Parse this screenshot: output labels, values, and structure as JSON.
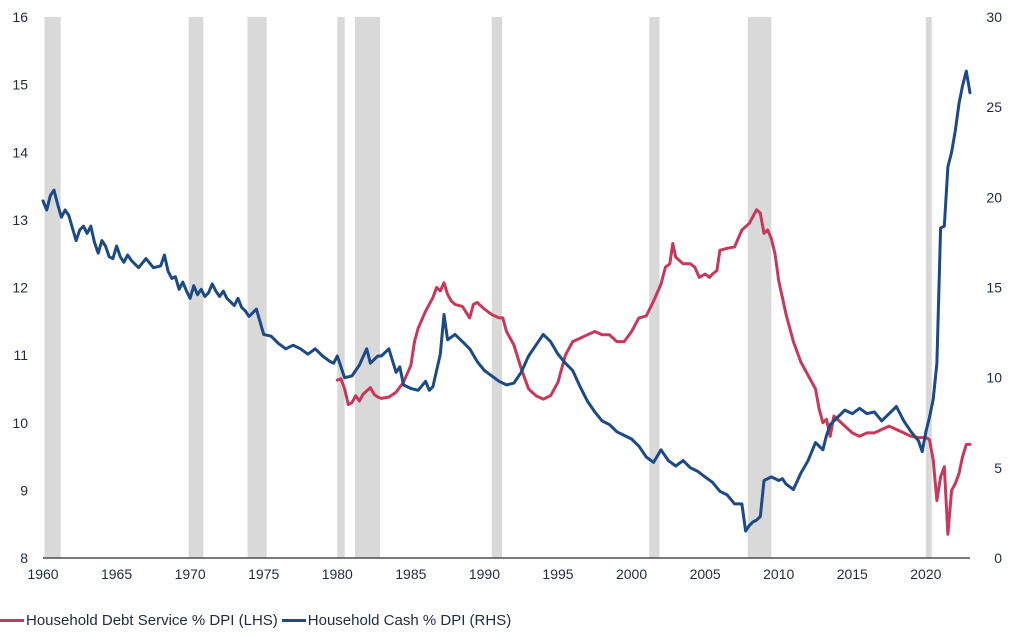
{
  "chart_data": {
    "type": "line",
    "title": "",
    "x_axis": {
      "range": [
        1960,
        2023
      ],
      "ticks": [
        1960,
        1965,
        1970,
        1975,
        1980,
        1985,
        1990,
        1995,
        2000,
        2005,
        2010,
        2015,
        2020
      ]
    },
    "y_left": {
      "range": [
        8,
        16
      ],
      "ticks": [
        8,
        9,
        10,
        11,
        12,
        13,
        14,
        15,
        16
      ]
    },
    "y_right": {
      "range": [
        0,
        30
      ],
      "ticks": [
        0,
        5,
        10,
        15,
        20,
        25,
        30
      ]
    },
    "grid": false,
    "legend_position": "bottom-left",
    "recessions": [
      [
        1960.1,
        1961.2
      ],
      [
        1969.9,
        1970.9
      ],
      [
        1973.9,
        1975.2
      ],
      [
        1980.0,
        1980.5
      ],
      [
        1981.2,
        1982.9
      ],
      [
        1990.5,
        1991.2
      ],
      [
        2001.2,
        2001.9
      ],
      [
        2007.9,
        2009.5
      ],
      [
        2020.0,
        2020.4
      ]
    ],
    "series": [
      {
        "name": "Household Debt Service % DPI (LHS)",
        "axis": "left",
        "color": "#c8385a",
        "points": [
          [
            1980.0,
            10.63
          ],
          [
            1980.25,
            10.65
          ],
          [
            1980.5,
            10.5
          ],
          [
            1980.75,
            10.27
          ],
          [
            1981.0,
            10.3
          ],
          [
            1981.25,
            10.4
          ],
          [
            1981.5,
            10.32
          ],
          [
            1981.75,
            10.42
          ],
          [
            1982.0,
            10.47
          ],
          [
            1982.25,
            10.52
          ],
          [
            1982.5,
            10.42
          ],
          [
            1982.75,
            10.38
          ],
          [
            1983.0,
            10.36
          ],
          [
            1983.5,
            10.38
          ],
          [
            1984.0,
            10.45
          ],
          [
            1984.5,
            10.6
          ],
          [
            1985.0,
            10.85
          ],
          [
            1985.25,
            11.2
          ],
          [
            1985.5,
            11.4
          ],
          [
            1986.0,
            11.65
          ],
          [
            1986.5,
            11.85
          ],
          [
            1986.75,
            12.0
          ],
          [
            1987.0,
            11.95
          ],
          [
            1987.25,
            12.07
          ],
          [
            1987.5,
            11.9
          ],
          [
            1987.75,
            11.8
          ],
          [
            1988.0,
            11.75
          ],
          [
            1988.5,
            11.72
          ],
          [
            1989.0,
            11.55
          ],
          [
            1989.25,
            11.75
          ],
          [
            1989.5,
            11.78
          ],
          [
            1990.0,
            11.68
          ],
          [
            1990.5,
            11.6
          ],
          [
            1991.0,
            11.55
          ],
          [
            1991.25,
            11.55
          ],
          [
            1991.5,
            11.35
          ],
          [
            1992.0,
            11.15
          ],
          [
            1992.5,
            10.8
          ],
          [
            1993.0,
            10.5
          ],
          [
            1993.5,
            10.4
          ],
          [
            1994.0,
            10.35
          ],
          [
            1994.5,
            10.4
          ],
          [
            1995.0,
            10.6
          ],
          [
            1995.5,
            11.0
          ],
          [
            1996.0,
            11.2
          ],
          [
            1996.5,
            11.25
          ],
          [
            1997.0,
            11.3
          ],
          [
            1997.5,
            11.35
          ],
          [
            1998.0,
            11.3
          ],
          [
            1998.5,
            11.3
          ],
          [
            1999.0,
            11.2
          ],
          [
            1999.5,
            11.2
          ],
          [
            2000.0,
            11.35
          ],
          [
            2000.5,
            11.55
          ],
          [
            2001.0,
            11.58
          ],
          [
            2001.5,
            11.8
          ],
          [
            2002.0,
            12.05
          ],
          [
            2002.3,
            12.3
          ],
          [
            2002.6,
            12.35
          ],
          [
            2002.8,
            12.65
          ],
          [
            2003.0,
            12.45
          ],
          [
            2003.5,
            12.35
          ],
          [
            2004.0,
            12.35
          ],
          [
            2004.3,
            12.3
          ],
          [
            2004.6,
            12.15
          ],
          [
            2005.0,
            12.2
          ],
          [
            2005.3,
            12.15
          ],
          [
            2005.5,
            12.2
          ],
          [
            2005.8,
            12.25
          ],
          [
            2006.0,
            12.55
          ],
          [
            2006.5,
            12.58
          ],
          [
            2007.0,
            12.6
          ],
          [
            2007.5,
            12.85
          ],
          [
            2008.0,
            12.95
          ],
          [
            2008.25,
            13.05
          ],
          [
            2008.5,
            13.15
          ],
          [
            2008.75,
            13.1
          ],
          [
            2009.0,
            12.8
          ],
          [
            2009.25,
            12.85
          ],
          [
            2009.5,
            12.72
          ],
          [
            2009.75,
            12.5
          ],
          [
            2010.0,
            12.1
          ],
          [
            2010.5,
            11.6
          ],
          [
            2011.0,
            11.2
          ],
          [
            2011.5,
            10.9
          ],
          [
            2012.0,
            10.7
          ],
          [
            2012.5,
            10.5
          ],
          [
            2012.75,
            10.2
          ],
          [
            2013.0,
            10.0
          ],
          [
            2013.25,
            10.05
          ],
          [
            2013.5,
            9.8
          ],
          [
            2013.75,
            10.1
          ],
          [
            2014.0,
            10.05
          ],
          [
            2014.5,
            9.95
          ],
          [
            2015.0,
            9.85
          ],
          [
            2015.5,
            9.8
          ],
          [
            2016.0,
            9.85
          ],
          [
            2016.5,
            9.85
          ],
          [
            2017.0,
            9.9
          ],
          [
            2017.5,
            9.95
          ],
          [
            2018.0,
            9.9
          ],
          [
            2018.5,
            9.85
          ],
          [
            2019.0,
            9.8
          ],
          [
            2019.5,
            9.78
          ],
          [
            2020.0,
            9.78
          ],
          [
            2020.25,
            9.75
          ],
          [
            2020.5,
            9.45
          ],
          [
            2020.75,
            8.85
          ],
          [
            2021.0,
            9.2
          ],
          [
            2021.25,
            9.35
          ],
          [
            2021.5,
            8.35
          ],
          [
            2021.75,
            9.0
          ],
          [
            2022.0,
            9.1
          ],
          [
            2022.25,
            9.25
          ],
          [
            2022.5,
            9.5
          ],
          [
            2022.75,
            9.68
          ],
          [
            2023.0,
            9.68
          ]
        ]
      },
      {
        "name": "Household Cash % DPI (RHS)",
        "axis": "right",
        "color": "#1c4a86",
        "points": [
          [
            1960.0,
            19.8
          ],
          [
            1960.25,
            19.3
          ],
          [
            1960.5,
            20.1
          ],
          [
            1960.75,
            20.4
          ],
          [
            1961.0,
            19.6
          ],
          [
            1961.25,
            18.9
          ],
          [
            1961.5,
            19.3
          ],
          [
            1961.75,
            19.0
          ],
          [
            1962.0,
            18.3
          ],
          [
            1962.25,
            17.6
          ],
          [
            1962.5,
            18.2
          ],
          [
            1962.75,
            18.4
          ],
          [
            1963.0,
            18.0
          ],
          [
            1963.25,
            18.4
          ],
          [
            1963.5,
            17.5
          ],
          [
            1963.75,
            16.9
          ],
          [
            1964.0,
            17.6
          ],
          [
            1964.25,
            17.3
          ],
          [
            1964.5,
            16.7
          ],
          [
            1964.75,
            16.6
          ],
          [
            1965.0,
            17.3
          ],
          [
            1965.25,
            16.7
          ],
          [
            1965.5,
            16.4
          ],
          [
            1965.75,
            16.8
          ],
          [
            1966.0,
            16.5
          ],
          [
            1966.5,
            16.1
          ],
          [
            1967.0,
            16.6
          ],
          [
            1967.5,
            16.1
          ],
          [
            1968.0,
            16.2
          ],
          [
            1968.25,
            16.8
          ],
          [
            1968.5,
            15.9
          ],
          [
            1968.75,
            15.5
          ],
          [
            1969.0,
            15.6
          ],
          [
            1969.25,
            14.9
          ],
          [
            1969.5,
            15.3
          ],
          [
            1969.75,
            14.8
          ],
          [
            1970.0,
            14.4
          ],
          [
            1970.25,
            15.1
          ],
          [
            1970.5,
            14.6
          ],
          [
            1970.75,
            14.9
          ],
          [
            1971.0,
            14.5
          ],
          [
            1971.25,
            14.7
          ],
          [
            1971.5,
            15.2
          ],
          [
            1971.75,
            14.8
          ],
          [
            1972.0,
            14.5
          ],
          [
            1972.25,
            14.8
          ],
          [
            1972.5,
            14.4
          ],
          [
            1972.75,
            14.2
          ],
          [
            1973.0,
            14.0
          ],
          [
            1973.25,
            14.4
          ],
          [
            1973.5,
            13.9
          ],
          [
            1973.75,
            13.7
          ],
          [
            1974.0,
            13.4
          ],
          [
            1974.5,
            13.8
          ],
          [
            1975.0,
            12.4
          ],
          [
            1975.5,
            12.3
          ],
          [
            1976.0,
            11.9
          ],
          [
            1976.5,
            11.6
          ],
          [
            1977.0,
            11.8
          ],
          [
            1977.5,
            11.6
          ],
          [
            1978.0,
            11.3
          ],
          [
            1978.5,
            11.6
          ],
          [
            1979.0,
            11.2
          ],
          [
            1979.5,
            10.9
          ],
          [
            1979.75,
            10.8
          ],
          [
            1980.0,
            11.2
          ],
          [
            1980.5,
            10.0
          ],
          [
            1981.0,
            10.1
          ],
          [
            1981.5,
            10.7
          ],
          [
            1982.0,
            11.6
          ],
          [
            1982.25,
            10.8
          ],
          [
            1982.5,
            11.0
          ],
          [
            1982.75,
            11.2
          ],
          [
            1983.0,
            11.2
          ],
          [
            1983.5,
            11.6
          ],
          [
            1984.0,
            10.3
          ],
          [
            1984.25,
            10.6
          ],
          [
            1984.5,
            9.6
          ],
          [
            1985.0,
            9.4
          ],
          [
            1985.5,
            9.3
          ],
          [
            1986.0,
            9.8
          ],
          [
            1986.25,
            9.3
          ],
          [
            1986.5,
            9.5
          ],
          [
            1987.0,
            11.3
          ],
          [
            1987.25,
            13.5
          ],
          [
            1987.5,
            12.1
          ],
          [
            1988.0,
            12.4
          ],
          [
            1988.5,
            12.0
          ],
          [
            1989.0,
            11.6
          ],
          [
            1989.5,
            10.9
          ],
          [
            1990.0,
            10.4
          ],
          [
            1990.5,
            10.1
          ],
          [
            1991.0,
            9.8
          ],
          [
            1991.5,
            9.6
          ],
          [
            1992.0,
            9.7
          ],
          [
            1992.5,
            10.3
          ],
          [
            1993.0,
            11.2
          ],
          [
            1993.5,
            11.8
          ],
          [
            1994.0,
            12.4
          ],
          [
            1994.5,
            12.0
          ],
          [
            1995.0,
            11.3
          ],
          [
            1995.5,
            10.8
          ],
          [
            1996.0,
            10.4
          ],
          [
            1996.5,
            9.5
          ],
          [
            1997.0,
            8.7
          ],
          [
            1997.5,
            8.1
          ],
          [
            1998.0,
            7.6
          ],
          [
            1998.5,
            7.4
          ],
          [
            1999.0,
            7.0
          ],
          [
            1999.5,
            6.8
          ],
          [
            2000.0,
            6.6
          ],
          [
            2000.5,
            6.2
          ],
          [
            2001.0,
            5.6
          ],
          [
            2001.5,
            5.3
          ],
          [
            2002.0,
            6.0
          ],
          [
            2002.5,
            5.4
          ],
          [
            2003.0,
            5.1
          ],
          [
            2003.5,
            5.4
          ],
          [
            2004.0,
            5.0
          ],
          [
            2004.5,
            4.8
          ],
          [
            2005.0,
            4.5
          ],
          [
            2005.5,
            4.2
          ],
          [
            2006.0,
            3.7
          ],
          [
            2006.5,
            3.5
          ],
          [
            2007.0,
            3.0
          ],
          [
            2007.5,
            3.0
          ],
          [
            2007.75,
            1.5
          ],
          [
            2008.0,
            1.8
          ],
          [
            2008.25,
            2.0
          ],
          [
            2008.5,
            2.1
          ],
          [
            2008.75,
            2.3
          ],
          [
            2009.0,
            4.3
          ],
          [
            2009.5,
            4.5
          ],
          [
            2010.0,
            4.3
          ],
          [
            2010.25,
            4.4
          ],
          [
            2010.5,
            4.1
          ],
          [
            2011.0,
            3.8
          ],
          [
            2011.5,
            4.7
          ],
          [
            2012.0,
            5.4
          ],
          [
            2012.5,
            6.4
          ],
          [
            2013.0,
            6.0
          ],
          [
            2013.25,
            6.8
          ],
          [
            2013.5,
            7.4
          ],
          [
            2014.0,
            7.8
          ],
          [
            2014.5,
            8.2
          ],
          [
            2015.0,
            8.0
          ],
          [
            2015.5,
            8.3
          ],
          [
            2016.0,
            8.0
          ],
          [
            2016.5,
            8.1
          ],
          [
            2017.0,
            7.6
          ],
          [
            2017.5,
            8.0
          ],
          [
            2018.0,
            8.4
          ],
          [
            2018.5,
            7.6
          ],
          [
            2019.0,
            7.0
          ],
          [
            2019.5,
            6.5
          ],
          [
            2019.75,
            5.9
          ],
          [
            2020.0,
            7.0
          ],
          [
            2020.25,
            7.8
          ],
          [
            2020.5,
            8.8
          ],
          [
            2020.75,
            10.8
          ],
          [
            2021.0,
            18.3
          ],
          [
            2021.25,
            18.4
          ],
          [
            2021.5,
            21.7
          ],
          [
            2021.75,
            22.5
          ],
          [
            2022.0,
            23.7
          ],
          [
            2022.25,
            25.2
          ],
          [
            2022.5,
            26.2
          ],
          [
            2022.75,
            27.0
          ],
          [
            2023.0,
            25.8
          ]
        ]
      }
    ]
  }
}
